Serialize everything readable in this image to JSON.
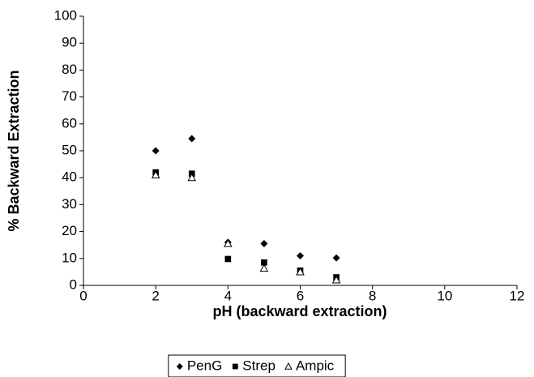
{
  "chart_data": {
    "type": "scatter",
    "x_label": "pH (backward extraction)",
    "y_label": "% Backward Extraction",
    "x": [
      2,
      3,
      4,
      5,
      6,
      7
    ],
    "series": [
      {
        "name": "PenG",
        "color": "#000000",
        "marker": "diamond",
        "values": [
          50,
          54.5,
          16,
          15.5,
          11,
          10.2
        ]
      },
      {
        "name": "Strep",
        "color": "#000000",
        "marker": "square",
        "values": [
          42,
          41.5,
          9.8,
          8.5,
          5.5,
          3
        ]
      },
      {
        "name": "Ampic",
        "color": "#000000",
        "marker": "triangle-open",
        "values": [
          41,
          40,
          15.5,
          6.3,
          5,
          2
        ]
      }
    ],
    "xlim": [
      0,
      12
    ],
    "xticks": [
      0,
      2,
      4,
      6,
      8,
      10,
      12
    ],
    "ylim": [
      0,
      100
    ],
    "yticks": [
      0,
      10,
      20,
      30,
      40,
      50,
      60,
      70,
      80,
      90,
      100
    ],
    "grid": false,
    "legend": "bottom"
  }
}
